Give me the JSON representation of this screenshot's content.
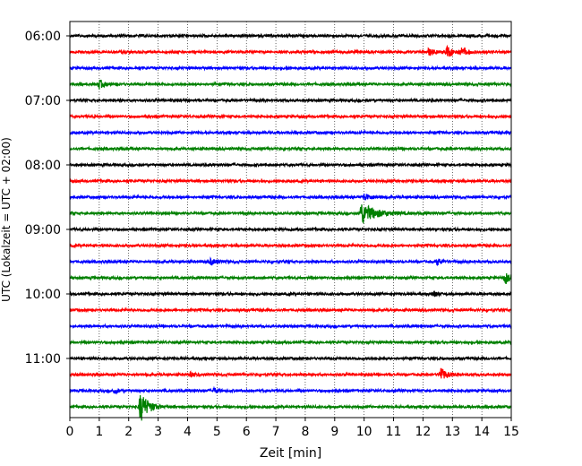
{
  "chart_data": {
    "type": "line",
    "title": "",
    "xlabel": "Zeit  [min]",
    "ylabel": "UTC (Lokalzeit = UTC + 02:00)",
    "xlim": [
      0,
      15
    ],
    "x_ticks": [
      "0",
      "1",
      "2",
      "3",
      "4",
      "5",
      "6",
      "7",
      "8",
      "9",
      "10",
      "11",
      "12",
      "13",
      "14",
      "15"
    ],
    "y_ticks": [
      "06:00",
      "07:00",
      "08:00",
      "09:00",
      "10:00",
      "11:00"
    ],
    "grid": "vertical dotted",
    "trace_interval_minutes": 15,
    "trace_colors": [
      "#000000",
      "#ff0000",
      "#0000ff",
      "#008000"
    ],
    "traces": [
      {
        "start": "06:00",
        "color": "#000000",
        "events": []
      },
      {
        "start": "06:15",
        "color": "#ff0000",
        "events": [
          {
            "t": 12.2,
            "amp": 0.35,
            "dur": 0.3
          },
          {
            "t": 12.8,
            "amp": 0.5,
            "dur": 0.5
          },
          {
            "t": 13.3,
            "amp": 0.3,
            "dur": 0.4
          }
        ]
      },
      {
        "start": "06:30",
        "color": "#0000ff",
        "events": []
      },
      {
        "start": "06:45",
        "color": "#008000",
        "events": [
          {
            "t": 1.0,
            "amp": 0.4,
            "dur": 0.3
          }
        ]
      },
      {
        "start": "07:00",
        "color": "#000000",
        "events": []
      },
      {
        "start": "07:15",
        "color": "#ff0000",
        "events": []
      },
      {
        "start": "07:30",
        "color": "#0000ff",
        "events": []
      },
      {
        "start": "07:45",
        "color": "#008000",
        "events": []
      },
      {
        "start": "08:00",
        "color": "#000000",
        "events": []
      },
      {
        "start": "08:15",
        "color": "#ff0000",
        "events": []
      },
      {
        "start": "08:30",
        "color": "#0000ff",
        "events": [
          {
            "t": 10.0,
            "amp": 0.3,
            "dur": 0.5
          }
        ]
      },
      {
        "start": "08:45",
        "color": "#008000",
        "events": [
          {
            "t": 9.9,
            "amp": 1.0,
            "dur": 0.9
          }
        ]
      },
      {
        "start": "09:00",
        "color": "#000000",
        "events": []
      },
      {
        "start": "09:15",
        "color": "#ff0000",
        "events": []
      },
      {
        "start": "09:30",
        "color": "#0000ff",
        "events": [
          {
            "t": 4.8,
            "amp": 0.3,
            "dur": 0.3
          },
          {
            "t": 12.5,
            "amp": 0.3,
            "dur": 0.3
          }
        ]
      },
      {
        "start": "09:45",
        "color": "#008000",
        "events": [
          {
            "t": 14.8,
            "amp": 0.5,
            "dur": 0.3
          }
        ]
      },
      {
        "start": "10:00",
        "color": "#000000",
        "events": [
          {
            "t": 12.4,
            "amp": 0.25,
            "dur": 0.2
          }
        ]
      },
      {
        "start": "10:15",
        "color": "#ff0000",
        "events": []
      },
      {
        "start": "10:30",
        "color": "#0000ff",
        "events": []
      },
      {
        "start": "10:45",
        "color": "#008000",
        "events": []
      },
      {
        "start": "11:00",
        "color": "#000000",
        "events": []
      },
      {
        "start": "11:15",
        "color": "#ff0000",
        "events": [
          {
            "t": 4.1,
            "amp": 0.25,
            "dur": 0.2
          },
          {
            "t": 12.6,
            "amp": 0.6,
            "dur": 0.4
          }
        ]
      },
      {
        "start": "11:30",
        "color": "#0000ff",
        "events": [
          {
            "t": 1.5,
            "amp": 0.25,
            "dur": 0.3
          },
          {
            "t": 4.9,
            "amp": 0.25,
            "dur": 0.2
          }
        ]
      },
      {
        "start": "11:45",
        "color": "#008000",
        "events": [
          {
            "t": 2.4,
            "amp": 1.4,
            "dur": 0.5
          }
        ]
      }
    ]
  }
}
